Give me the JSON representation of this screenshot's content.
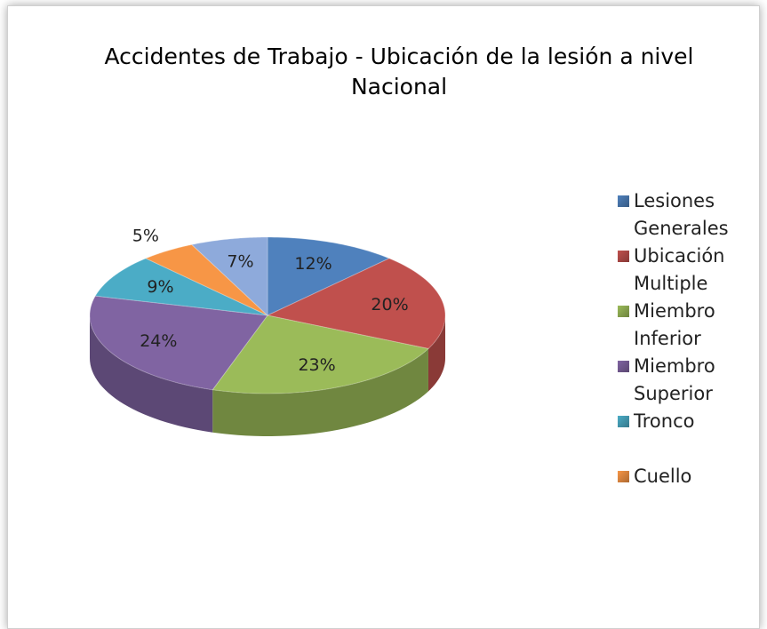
{
  "chart_data": {
    "type": "pie",
    "title": "Accidentes de Trabajo - Ubicación de la lesión a nivel Nacional",
    "categories": [
      "Lesiones Generales",
      "Ubicación Multiple",
      "Miembro Inferior",
      "Miembro Superior",
      "Tronco",
      "Cuello",
      null
    ],
    "values": [
      12,
      20,
      23,
      24,
      9,
      5,
      7
    ],
    "value_labels": [
      "12%",
      "20%",
      "23%",
      "24%",
      "9%",
      "5%",
      "7%"
    ],
    "colors": [
      "#4f81bd",
      "#c0504d",
      "#9bbb59",
      "#8064a2",
      "#4bacc6",
      "#f79646",
      "#8eaadb"
    ],
    "legend": "right"
  }
}
